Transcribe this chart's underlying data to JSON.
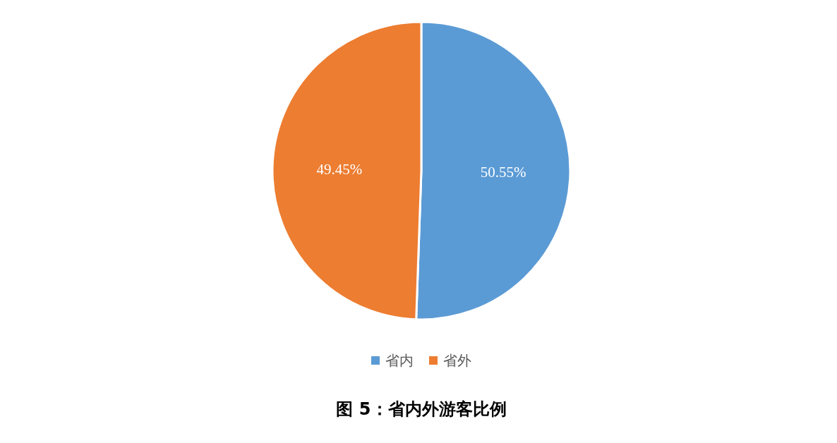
{
  "chart_data": {
    "type": "pie",
    "title": "图 5：省内外游客比例",
    "categories": [
      "省内",
      "省外"
    ],
    "values": [
      50.55,
      49.45
    ],
    "colors": [
      "#5b9bd5",
      "#ed7d31"
    ],
    "value_labels": [
      "50.55%",
      "49.45%"
    ],
    "legend": "bottom"
  }
}
